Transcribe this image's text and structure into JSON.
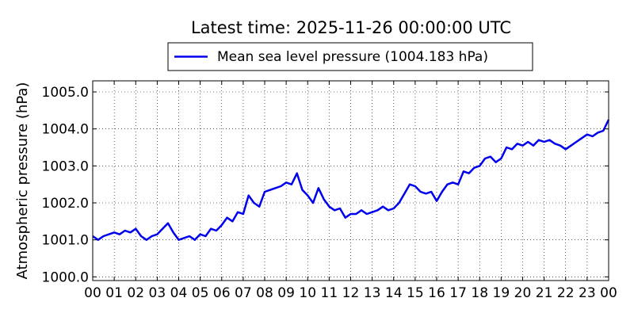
{
  "chart_data": {
    "type": "line",
    "title": "Latest time: 2025-11-26 00:00:00 UTC",
    "xlabel": "",
    "ylabel": "Atmospheric pressure (hPa)",
    "xlim": [
      0,
      24
    ],
    "ylim": [
      999.9,
      1005.3
    ],
    "x_ticks": [
      "00",
      "01",
      "02",
      "03",
      "04",
      "05",
      "06",
      "07",
      "08",
      "09",
      "10",
      "11",
      "12",
      "13",
      "14",
      "15",
      "16",
      "17",
      "18",
      "19",
      "20",
      "21",
      "22",
      "23",
      "00"
    ],
    "y_ticks": [
      "1000.0",
      "1001.0",
      "1002.0",
      "1003.0",
      "1004.0",
      "1005.0"
    ],
    "grid": true,
    "legend_position": "top-center",
    "series": [
      {
        "name": "Mean sea level pressure (1004.183 hPa)",
        "color": "#0000ee",
        "x": [
          0,
          0.25,
          0.5,
          0.75,
          1,
          1.25,
          1.5,
          1.75,
          2,
          2.25,
          2.5,
          2.75,
          3,
          3.25,
          3.5,
          3.75,
          4,
          4.25,
          4.5,
          4.75,
          5,
          5.25,
          5.5,
          5.75,
          6,
          6.25,
          6.5,
          6.75,
          7,
          7.25,
          7.5,
          7.75,
          8,
          8.25,
          8.5,
          8.75,
          9,
          9.25,
          9.5,
          9.75,
          10,
          10.25,
          10.5,
          10.75,
          11,
          11.25,
          11.5,
          11.75,
          12,
          12.25,
          12.5,
          12.75,
          13,
          13.25,
          13.5,
          13.75,
          14,
          14.25,
          14.5,
          14.75,
          15,
          15.25,
          15.5,
          15.75,
          16,
          16.25,
          16.5,
          16.75,
          17,
          17.25,
          17.5,
          17.75,
          18,
          18.25,
          18.5,
          18.75,
          19,
          19.25,
          19.5,
          19.75,
          20,
          20.25,
          20.5,
          20.75,
          21,
          21.25,
          21.5,
          21.75,
          22,
          22.25,
          22.5,
          22.75,
          23,
          23.25,
          23.5,
          23.75,
          24
        ],
        "y": [
          1001.1,
          1001.0,
          1001.1,
          1001.15,
          1001.2,
          1001.15,
          1001.25,
          1001.2,
          1001.3,
          1001.1,
          1001.0,
          1001.1,
          1001.15,
          1001.3,
          1001.45,
          1001.2,
          1001.0,
          1001.05,
          1001.1,
          1001.0,
          1001.15,
          1001.1,
          1001.3,
          1001.25,
          1001.4,
          1001.6,
          1001.5,
          1001.75,
          1001.7,
          1002.2,
          1002.0,
          1001.9,
          1002.3,
          1002.35,
          1002.4,
          1002.45,
          1002.55,
          1002.5,
          1002.8,
          1002.35,
          1002.2,
          1002.0,
          1002.4,
          1002.1,
          1001.9,
          1001.8,
          1001.85,
          1001.6,
          1001.7,
          1001.7,
          1001.8,
          1001.7,
          1001.75,
          1001.8,
          1001.9,
          1001.8,
          1001.85,
          1002.0,
          1002.25,
          1002.5,
          1002.45,
          1002.3,
          1002.25,
          1002.3,
          1002.05,
          1002.3,
          1002.5,
          1002.55,
          1002.5,
          1002.85,
          1002.8,
          1002.95,
          1003.0,
          1003.2,
          1003.25,
          1003.1,
          1003.2,
          1003.5,
          1003.45,
          1003.6,
          1003.55,
          1003.65,
          1003.55,
          1003.7,
          1003.65,
          1003.7,
          1003.6,
          1003.55,
          1003.45,
          1003.55,
          1003.65,
          1003.75,
          1003.85,
          1003.8,
          1003.9,
          1003.95,
          1004.25
        ]
      }
    ]
  }
}
